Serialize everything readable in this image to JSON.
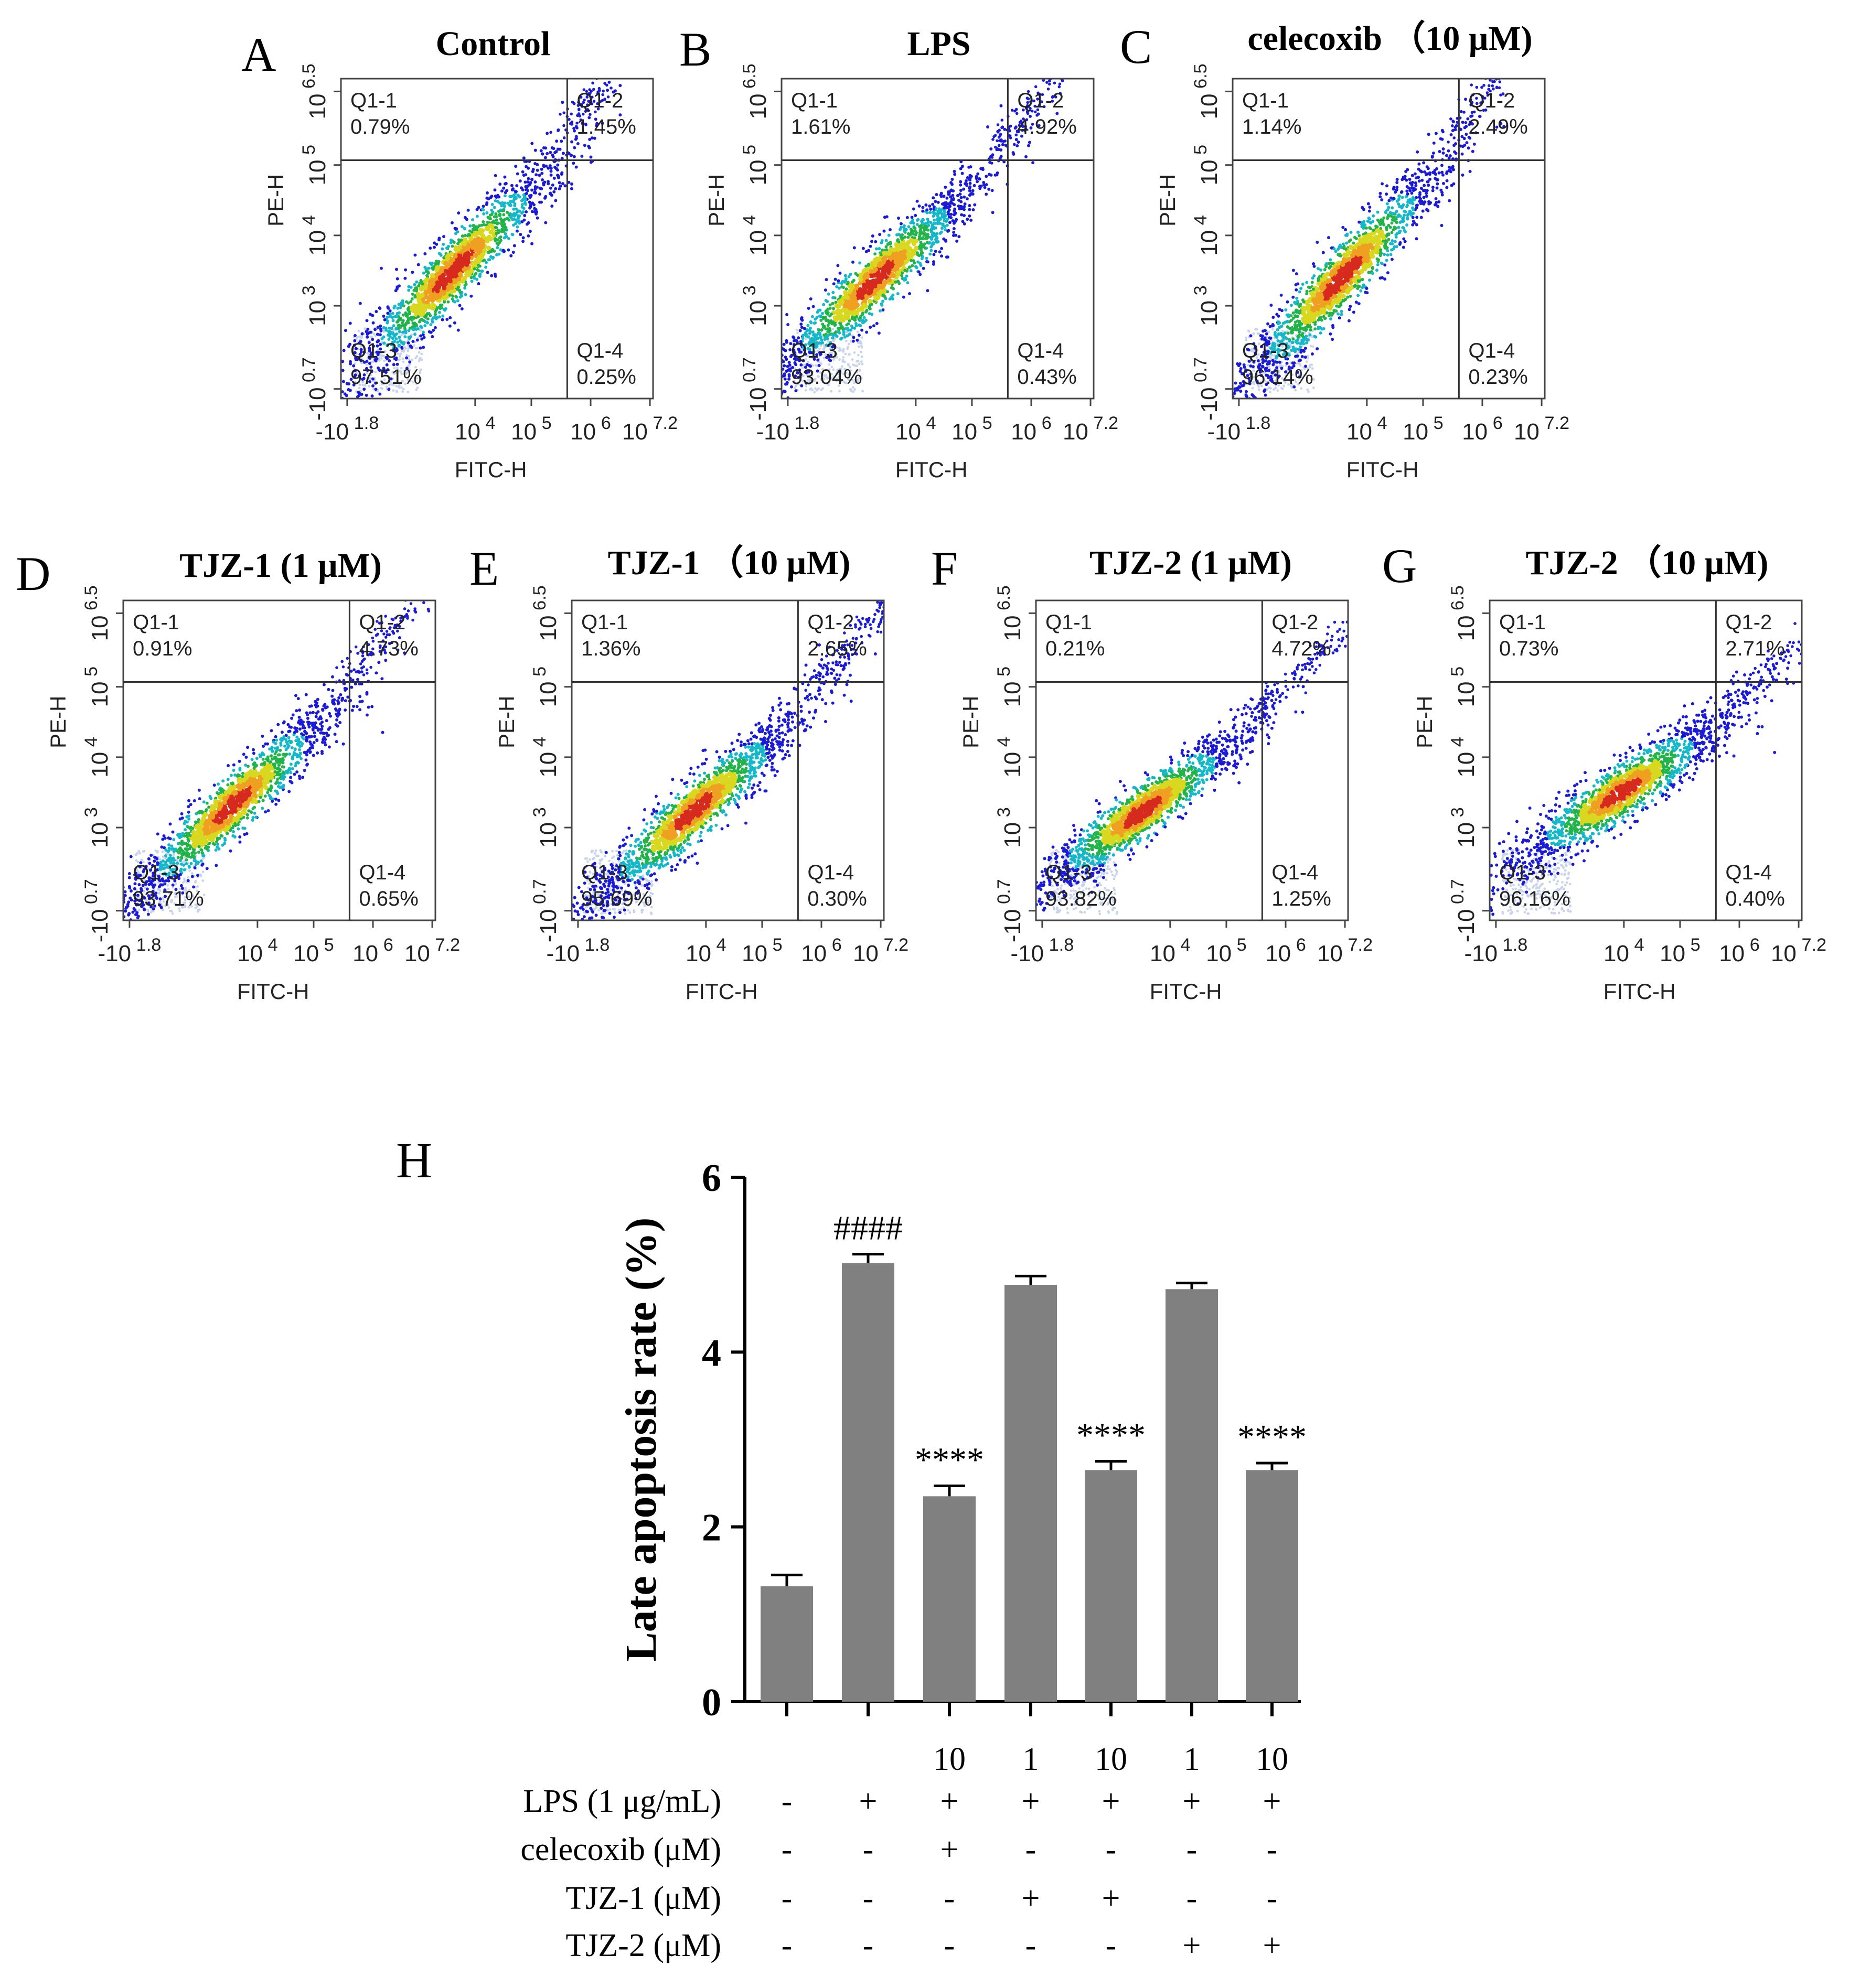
{
  "flow_labels": {
    "quadrant_names": [
      "Q1-1",
      "Q1-2",
      "Q1-3",
      "Q1-4"
    ]
  },
  "chart_data": [
    {
      "type": "scatter",
      "kind": "flow-cytometry-density",
      "panel": "A",
      "title": "Control",
      "xlabel": "FITC-H",
      "ylabel": "PE-H",
      "x_ticks": [
        "-10 1.8",
        "10 4",
        "10 5",
        "10 6",
        "10 7.2"
      ],
      "y_ticks": [
        "-10 0.7",
        "10 3",
        "10 4",
        "10 5",
        "10 6.5"
      ],
      "quadrants": {
        "Q1-1": "0.79%",
        "Q1-2": "1.45%",
        "Q1-3": "97.51%",
        "Q1-4": "0.25%"
      }
    },
    {
      "type": "scatter",
      "kind": "flow-cytometry-density",
      "panel": "B",
      "title": "LPS",
      "xlabel": "FITC-H",
      "ylabel": "PE-H",
      "x_ticks": [
        "-10 1.8",
        "10 4",
        "10 5",
        "10 6",
        "10 7.2"
      ],
      "y_ticks": [
        "-10 0.7",
        "10 3",
        "10 4",
        "10 5",
        "10 6.5"
      ],
      "quadrants": {
        "Q1-1": "1.61%",
        "Q1-2": "4.92%",
        "Q1-3": "93.04%",
        "Q1-4": "0.43%"
      }
    },
    {
      "type": "scatter",
      "kind": "flow-cytometry-density",
      "panel": "C",
      "title": "celecoxib （10 μM)",
      "xlabel": "FITC-H",
      "ylabel": "PE-H",
      "x_ticks": [
        "-10 1.8",
        "10 4",
        "10 5",
        "10 6",
        "10 7.2"
      ],
      "y_ticks": [
        "-10 0.7",
        "10 3",
        "10 4",
        "10 5",
        "10 6.5"
      ],
      "quadrants": {
        "Q1-1": "1.14%",
        "Q1-2": "2.49%",
        "Q1-3": "96.14%",
        "Q1-4": "0.23%"
      }
    },
    {
      "type": "scatter",
      "kind": "flow-cytometry-density",
      "panel": "D",
      "title": "TJZ-1 (1 μM)",
      "xlabel": "FITC-H",
      "ylabel": "PE-H",
      "x_ticks": [
        "-10 1.8",
        "10 4",
        "10 5",
        "10 6",
        "10 7.2"
      ],
      "y_ticks": [
        "-10 0.7",
        "10 3",
        "10 4",
        "10 5",
        "10 6.5"
      ],
      "quadrants": {
        "Q1-1": "0.91%",
        "Q1-2": "4.73%",
        "Q1-3": "93.71%",
        "Q1-4": "0.65%"
      }
    },
    {
      "type": "scatter",
      "kind": "flow-cytometry-density",
      "panel": "E",
      "title": "TJZ-1 （10 μM)",
      "xlabel": "FITC-H",
      "ylabel": "PE-H",
      "x_ticks": [
        "-10 1.8",
        "10 4",
        "10 5",
        "10 6",
        "10 7.2"
      ],
      "y_ticks": [
        "-10 0.7",
        "10 3",
        "10 4",
        "10 5",
        "10 6.5"
      ],
      "quadrants": {
        "Q1-1": "1.36%",
        "Q1-2": "2.65%",
        "Q1-3": "95.69%",
        "Q1-4": "0.30%"
      }
    },
    {
      "type": "scatter",
      "kind": "flow-cytometry-density",
      "panel": "F",
      "title": "TJZ-2 (1 μM)",
      "xlabel": "FITC-H",
      "ylabel": "PE-H",
      "x_ticks": [
        "-10 1.8",
        "10 4",
        "10 5",
        "10 6",
        "10 7.2"
      ],
      "y_ticks": [
        "-10 0.7",
        "10 3",
        "10 4",
        "10 5",
        "10 6.5"
      ],
      "quadrants": {
        "Q1-1": "0.21%",
        "Q1-2": "4.72%",
        "Q1-3": "93.82%",
        "Q1-4": "1.25%"
      }
    },
    {
      "type": "scatter",
      "kind": "flow-cytometry-density",
      "panel": "G",
      "title": "TJZ-2 （10 μM)",
      "xlabel": "FITC-H",
      "ylabel": "PE-H",
      "x_ticks": [
        "-10 1.8",
        "10 4",
        "10 5",
        "10 6",
        "10 7.2"
      ],
      "y_ticks": [
        "-10 0.7",
        "10 3",
        "10 4",
        "10 5",
        "10 6.5"
      ],
      "quadrants": {
        "Q1-1": "0.73%",
        "Q1-2": "2.71%",
        "Q1-3": "96.16%",
        "Q1-4": "0.40%"
      }
    },
    {
      "type": "bar",
      "panel": "H",
      "ylabel": "Late apoptosis rate (%)",
      "ylim": [
        0,
        6
      ],
      "y_ticks": [
        0,
        2,
        4,
        6
      ],
      "values": [
        1.32,
        5.02,
        2.35,
        4.77,
        2.65,
        4.72,
        2.65
      ],
      "errors": [
        0.13,
        0.1,
        0.12,
        0.1,
        0.1,
        0.07,
        0.08
      ],
      "significance": [
        "",
        "####",
        "****",
        "",
        "****",
        "",
        "****"
      ],
      "bar_color": "#808080",
      "dose_row": [
        "",
        "",
        "10",
        "1",
        "10",
        "1",
        "10"
      ],
      "conditions": [
        {
          "label": "LPS (1 μg/mL)",
          "values": [
            "-",
            "+",
            "+",
            "+",
            "+",
            "+",
            "+"
          ]
        },
        {
          "label": "celecoxib (μM)",
          "values": [
            "-",
            "-",
            "+",
            "-",
            "-",
            "-",
            "-"
          ]
        },
        {
          "label": "TJZ-1 (μM)",
          "values": [
            "-",
            "-",
            "-",
            "+",
            "+",
            "-",
            "-"
          ]
        },
        {
          "label": "TJZ-2 (μM)",
          "values": [
            "-",
            "-",
            "-",
            "-",
            "-",
            "+",
            "+"
          ]
        }
      ]
    }
  ]
}
